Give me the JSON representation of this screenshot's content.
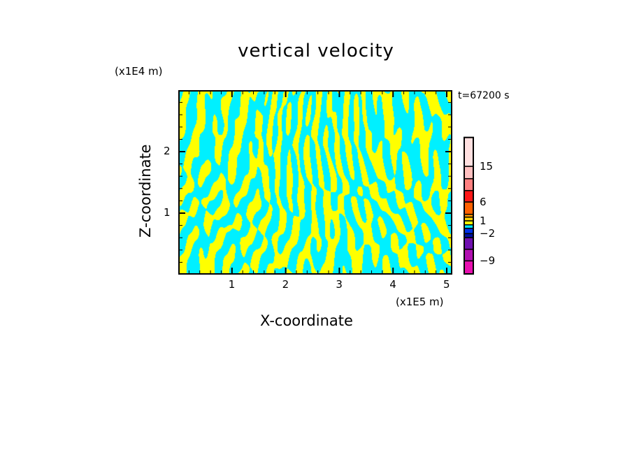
{
  "chart_data": {
    "type": "heatmap",
    "title": "vertical velocity",
    "xlabel": "X-coordinate",
    "ylabel": "Z-coordinate",
    "x_unit": "(x1E5 m)",
    "y_unit": "(x1E4 m)",
    "time_label": "t=67200 s",
    "xlim": [
      0,
      5.1
    ],
    "ylim": [
      0,
      3.0
    ],
    "x_ticks": [
      "1",
      "2",
      "3",
      "4",
      "5"
    ],
    "y_ticks": [
      "1",
      "2"
    ],
    "dominant_colors": [
      "#00f0ff",
      "#ffff00"
    ],
    "colorbar": {
      "labels": [
        {
          "text": "15",
          "value": 15
        },
        {
          "text": "6",
          "value": 6
        },
        {
          "text": "1",
          "value": 1
        },
        {
          "text": "−2",
          "value": -2
        },
        {
          "text": "−9",
          "value": -9
        }
      ],
      "levels": [
        -12,
        -9,
        -6,
        -3,
        -2,
        -1,
        0,
        1,
        2,
        3,
        6,
        9,
        12,
        15,
        18
      ],
      "colors": [
        "#e810b0",
        "#b010b0",
        "#7010b0",
        "#0010a0",
        "#0030e8",
        "#00e8ff",
        "#ffff00",
        "#ffd000",
        "#ff9800",
        "#ff6000",
        "#ff1818",
        "#ff8080",
        "#ffc0c0",
        "#ffe0e0"
      ]
    }
  }
}
